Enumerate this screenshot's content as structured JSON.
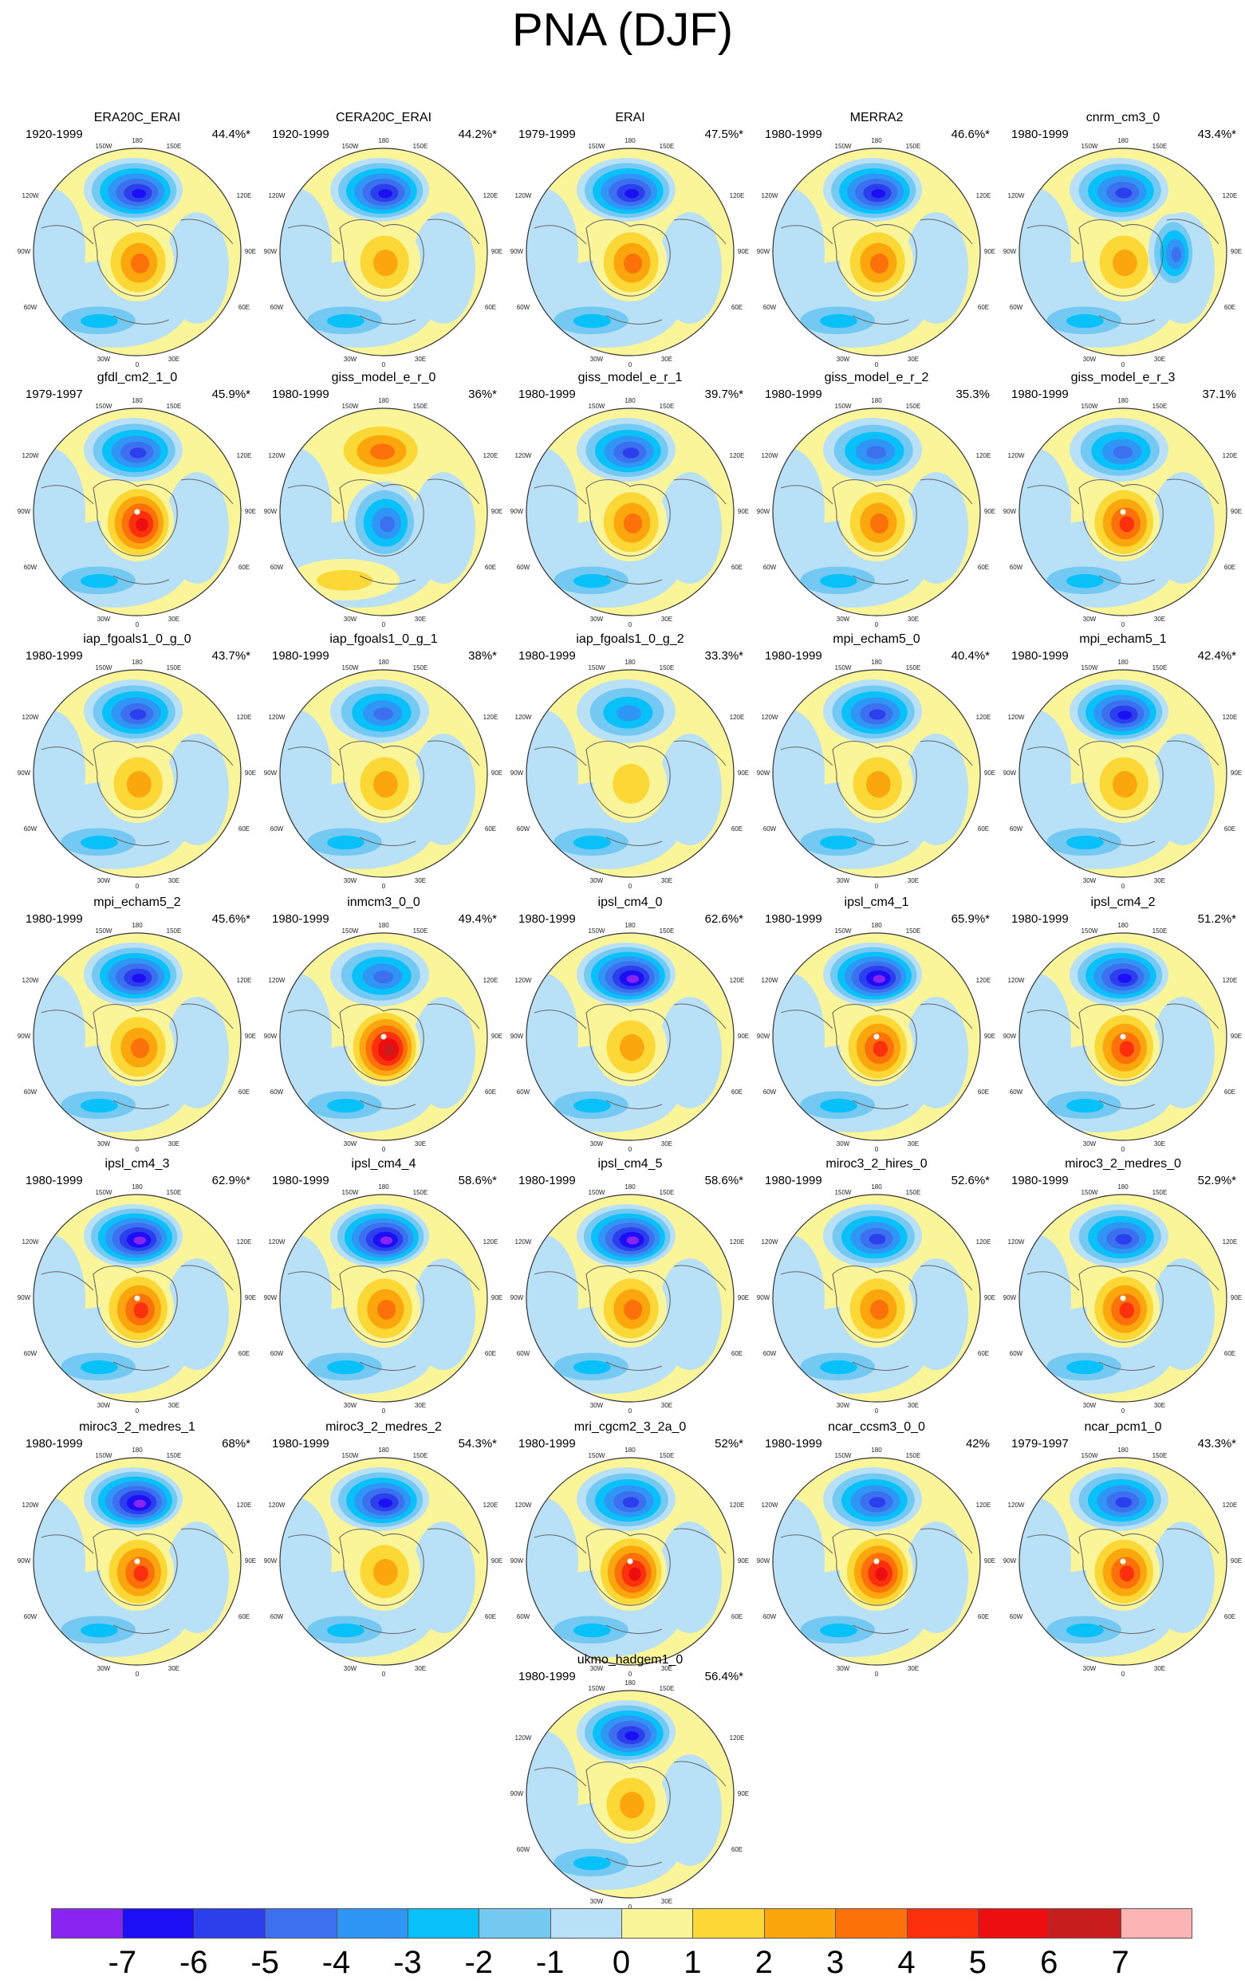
{
  "chart_data": {
    "type": "polar-stereographic contour map panels (Northern Hemisphere)",
    "title": "PNA (DJF)",
    "panels": [
      {
        "name": "ERA20C_ERAI",
        "years": "1920-1999",
        "variance": "44.4%*",
        "pacific_low": -6,
        "atlantic_high": 3,
        "extra": 0
      },
      {
        "name": "CERA20C_ERAI",
        "years": "1920-1999",
        "variance": "44.2%*",
        "pacific_low": -6,
        "atlantic_high": 2,
        "extra": 0
      },
      {
        "name": "ERAI",
        "years": "1979-1999",
        "variance": "47.5%*",
        "pacific_low": -6,
        "atlantic_high": 3,
        "extra": 0
      },
      {
        "name": "MERRA2",
        "years": "1980-1999",
        "variance": "46.6%*",
        "pacific_low": -6,
        "atlantic_high": 3,
        "extra": 0
      },
      {
        "name": "cnrm_cm3_0",
        "years": "1980-1999",
        "variance": "43.4%*",
        "pacific_low": -5,
        "atlantic_high": 2,
        "extra": -4
      },
      {
        "name": "gfdl_cm2_1_0",
        "years": "1979-1997",
        "variance": "45.9%*",
        "pacific_low": -5,
        "atlantic_high": 5,
        "extra": 0
      },
      {
        "name": "giss_model_e_r_0",
        "years": "1980-1999",
        "variance": "36%*",
        "pacific_low": 3,
        "atlantic_high": -4,
        "extra": 0
      },
      {
        "name": "giss_model_e_r_1",
        "years": "1980-1999",
        "variance": "39.7%*",
        "pacific_low": -5,
        "atlantic_high": 3,
        "extra": 0
      },
      {
        "name": "giss_model_e_r_2",
        "years": "1980-1999",
        "variance": "35.3%",
        "pacific_low": -4,
        "atlantic_high": 3,
        "extra": 0
      },
      {
        "name": "giss_model_e_r_3",
        "years": "1980-1999",
        "variance": "37.1%",
        "pacific_low": -4,
        "atlantic_high": 4,
        "extra": 0
      },
      {
        "name": "iap_fgoals1_0_g_0",
        "years": "1980-1999",
        "variance": "43.7%*",
        "pacific_low": -5,
        "atlantic_high": 2,
        "extra": 0
      },
      {
        "name": "iap_fgoals1_0_g_1",
        "years": "1980-1999",
        "variance": "38%*",
        "pacific_low": -4,
        "atlantic_high": 2,
        "extra": 0
      },
      {
        "name": "iap_fgoals1_0_g_2",
        "years": "1980-1999",
        "variance": "33.3%*",
        "pacific_low": -3,
        "atlantic_high": 1,
        "extra": 0
      },
      {
        "name": "mpi_echam5_0",
        "years": "1980-1999",
        "variance": "40.4%*",
        "pacific_low": -5,
        "atlantic_high": 2,
        "extra": 0
      },
      {
        "name": "mpi_echam5_1",
        "years": "1980-1999",
        "variance": "42.4%*",
        "pacific_low": -6,
        "atlantic_high": 2,
        "extra": 0
      },
      {
        "name": "mpi_echam5_2",
        "years": "1980-1999",
        "variance": "45.6%*",
        "pacific_low": -6,
        "atlantic_high": 3,
        "extra": 0
      },
      {
        "name": "inmcm3_0_0",
        "years": "1980-1999",
        "variance": "49.4%*",
        "pacific_low": -4,
        "atlantic_high": 6,
        "extra": 0
      },
      {
        "name": "ipsl_cm4_0",
        "years": "1980-1999",
        "variance": "62.6%*",
        "pacific_low": -7,
        "atlantic_high": 2,
        "extra": 0
      },
      {
        "name": "ipsl_cm4_1",
        "years": "1980-1999",
        "variance": "65.9%*",
        "pacific_low": -7,
        "atlantic_high": 4,
        "extra": 0
      },
      {
        "name": "ipsl_cm4_2",
        "years": "1980-1999",
        "variance": "51.2%*",
        "pacific_low": -6,
        "atlantic_high": 4,
        "extra": 0
      },
      {
        "name": "ipsl_cm4_3",
        "years": "1980-1999",
        "variance": "62.9%*",
        "pacific_low": -7,
        "atlantic_high": 4,
        "extra": 0
      },
      {
        "name": "ipsl_cm4_4",
        "years": "1980-1999",
        "variance": "58.6%*",
        "pacific_low": -7,
        "atlantic_high": 3,
        "extra": 0
      },
      {
        "name": "ipsl_cm4_5",
        "years": "1980-1999",
        "variance": "58.6%*",
        "pacific_low": -7,
        "atlantic_high": 3,
        "extra": 0
      },
      {
        "name": "miroc3_2_hires_0",
        "years": "1980-1999",
        "variance": "52.6%*",
        "pacific_low": -5,
        "atlantic_high": 3,
        "extra": 0
      },
      {
        "name": "miroc3_2_medres_0",
        "years": "1980-1999",
        "variance": "52.9%*",
        "pacific_low": -5,
        "atlantic_high": 4,
        "extra": 0
      },
      {
        "name": "miroc3_2_medres_1",
        "years": "1980-1999",
        "variance": "68%*",
        "pacific_low": -7,
        "atlantic_high": 4,
        "extra": 0
      },
      {
        "name": "miroc3_2_medres_2",
        "years": "1980-1999",
        "variance": "54.3%*",
        "pacific_low": -6,
        "atlantic_high": 2,
        "extra": 0
      },
      {
        "name": "mri_cgcm2_3_2a_0",
        "years": "1980-1999",
        "variance": "52%*",
        "pacific_low": -5,
        "atlantic_high": 5,
        "extra": 0
      },
      {
        "name": "ncar_ccsm3_0_0",
        "years": "1980-1999",
        "variance": "42%",
        "pacific_low": -5,
        "atlantic_high": 5,
        "extra": 0
      },
      {
        "name": "ncar_pcm1_0",
        "years": "1979-1997",
        "variance": "43.3%*",
        "pacific_low": -5,
        "atlantic_high": 4,
        "extra": 0
      },
      {
        "name": "ukmo_hadgem1_0",
        "years": "1980-1999",
        "variance": "56.4%*",
        "pacific_low": -6,
        "atlantic_high": 2,
        "extra": 0
      }
    ],
    "lon_labels": [
      "180",
      "150W",
      "150E",
      "120W",
      "120E",
      "90W",
      "90E",
      "60W",
      "60E",
      "30W",
      "30E",
      "0"
    ],
    "colorbar": {
      "labels": [
        "-7",
        "-6",
        "-5",
        "-4",
        "-3",
        "-2",
        "-1",
        "0",
        "1",
        "2",
        "3",
        "4",
        "5",
        "6",
        "7"
      ],
      "levels": [
        -7,
        -6,
        -5,
        -4,
        -3,
        -2,
        -1,
        0,
        1,
        2,
        3,
        4,
        5,
        6,
        7
      ],
      "colors": [
        "#8a24f0",
        "#1c0ff5",
        "#2b40ec",
        "#3c70ee",
        "#2f96f5",
        "#08c1f8",
        "#74c9f3",
        "#b8e0f6",
        "#fbf59a",
        "#fcd836",
        "#fca60e",
        "#fc7109",
        "#fc300c",
        "#ec0e10",
        "#c91c1c",
        "#fcb4b4"
      ]
    }
  }
}
